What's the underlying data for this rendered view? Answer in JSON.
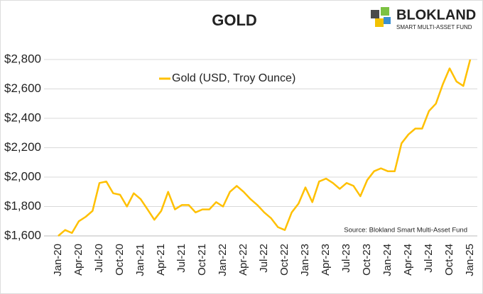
{
  "logo": {
    "name": "BLOKLAND",
    "tagline": "SMART MULTI-ASSET FUND"
  },
  "chart_data": {
    "type": "line",
    "title": "GOLD",
    "source": "Source: Blokland Smart Multi-Asset Fund",
    "categories": [
      "Jan-20",
      null,
      null,
      "Apr-20",
      null,
      null,
      "Jul-20",
      null,
      null,
      "Oct-20",
      null,
      null,
      "Jan-21",
      null,
      null,
      "Apr-21",
      null,
      null,
      "Jul-21",
      null,
      null,
      "Oct-21",
      null,
      null,
      "Jan-22",
      null,
      null,
      "Apr-22",
      null,
      null,
      "Jul-22",
      null,
      null,
      "Oct-22",
      null,
      null,
      "Jan-23",
      null,
      null,
      "Apr-23",
      null,
      null,
      "Jul-23",
      null,
      null,
      "Oct-23",
      null,
      null,
      "Jan-24",
      null,
      null,
      "Apr-24",
      null,
      null,
      "Jul-24",
      null,
      null,
      "Oct-24",
      null,
      null,
      "Jan-25"
    ],
    "series": [
      {
        "name": "Gold (USD, Troy Ounce)",
        "color": "#ffc000",
        "values": [
          1600,
          1640,
          1620,
          1700,
          1730,
          1770,
          1960,
          1970,
          1890,
          1880,
          1800,
          1890,
          1850,
          1780,
          1710,
          1770,
          1900,
          1780,
          1810,
          1810,
          1760,
          1780,
          1780,
          1830,
          1800,
          1900,
          1940,
          1900,
          1850,
          1810,
          1760,
          1720,
          1660,
          1640,
          1760,
          1820,
          1930,
          1830,
          1970,
          1990,
          1960,
          1920,
          1960,
          1940,
          1870,
          1980,
          2040,
          2060,
          2040,
          2040,
          2230,
          2290,
          2330,
          2330,
          2450,
          2500,
          2630,
          2740,
          2650,
          2620,
          2800
        ]
      }
    ],
    "ylim": [
      1600,
      2800
    ],
    "yticks": [
      {
        "value": 1600,
        "label": "$1,600"
      },
      {
        "value": 1800,
        "label": "$1,800"
      },
      {
        "value": 2000,
        "label": "$2,000"
      },
      {
        "value": 2200,
        "label": "$2,200"
      },
      {
        "value": 2400,
        "label": "$2,400"
      },
      {
        "value": 2600,
        "label": "$2,600"
      },
      {
        "value": 2800,
        "label": "$2,800"
      }
    ],
    "grid": true,
    "legend": "top-left"
  }
}
